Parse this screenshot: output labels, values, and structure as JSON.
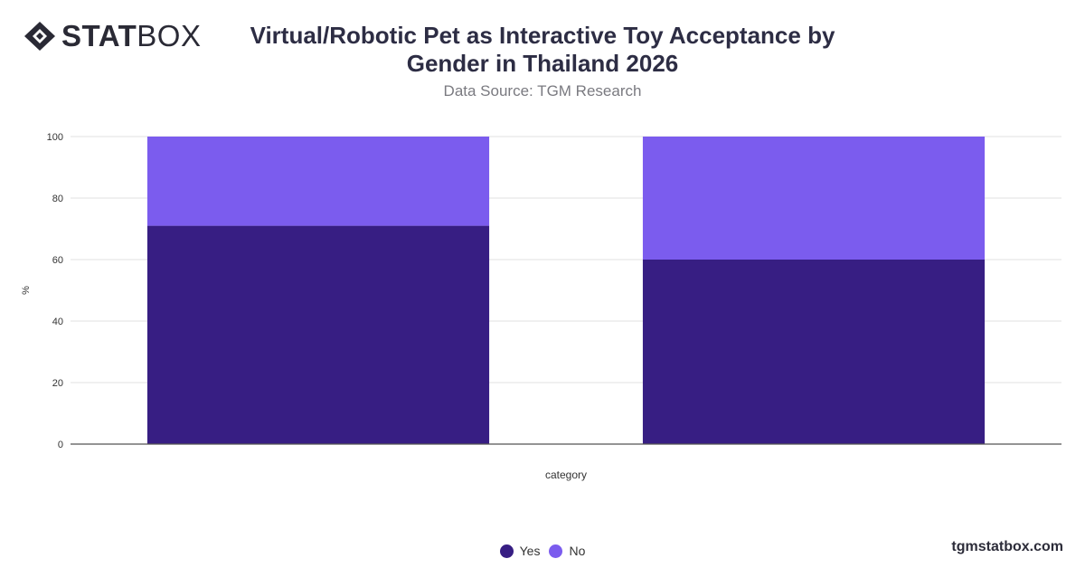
{
  "brand": {
    "logo_bold": "STAT",
    "logo_light": "BOX",
    "footer": "tgmstatbox.com"
  },
  "header": {
    "title": "Virtual/Robotic Pet as Interactive Toy Acceptance by Gender in Thailand 2026",
    "subtitle": "Data Source: TGM Research"
  },
  "colors": {
    "yes": "#371E83",
    "no": "#7B5CEE",
    "grid": "#e2e2e2",
    "axis": "#555555"
  },
  "chart_data": {
    "type": "bar",
    "stacked": true,
    "categories": [
      "",
      ""
    ],
    "series": [
      {
        "name": "Yes",
        "values": [
          71,
          60
        ]
      },
      {
        "name": "No",
        "values": [
          29,
          40
        ]
      }
    ],
    "xlabel": "category",
    "ylabel": "%",
    "ylim": [
      0,
      100
    ],
    "yticks": [
      0,
      20,
      40,
      60,
      80,
      100
    ],
    "grid": true,
    "legend_position": "bottom-center"
  }
}
